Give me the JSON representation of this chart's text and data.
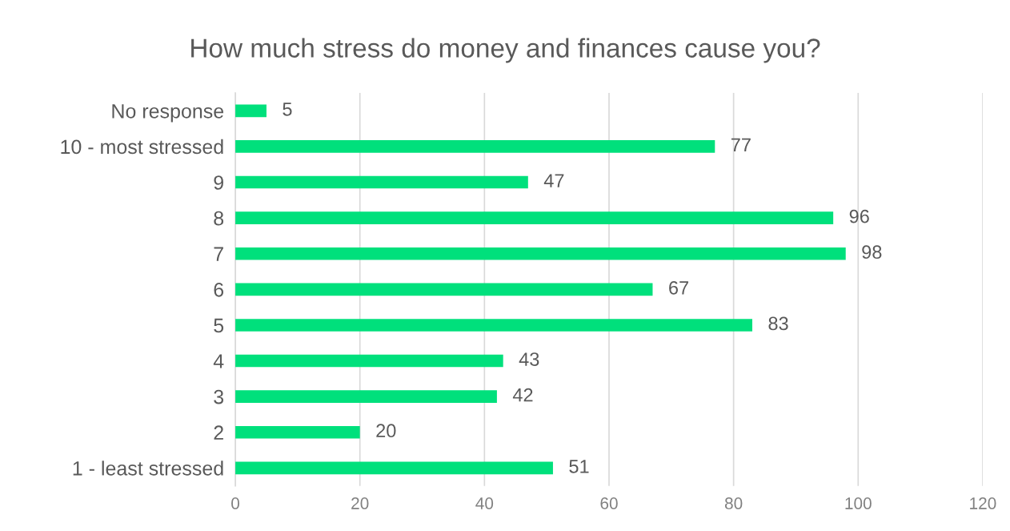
{
  "chart_data": {
    "type": "bar",
    "orientation": "horizontal",
    "title": "How much stress do money and finances cause you?",
    "categories": [
      "No response",
      "10 - most stressed",
      "9",
      "8",
      "7",
      "6",
      "5",
      "4",
      "3",
      "2",
      "1 - least stressed"
    ],
    "values": [
      5,
      77,
      47,
      96,
      98,
      67,
      83,
      43,
      42,
      20,
      51
    ],
    "color": "#00e07c",
    "xlim": [
      0,
      120
    ],
    "xticks": [
      0,
      20,
      40,
      60,
      80,
      100,
      120
    ],
    "grid": "x",
    "data_labels": true,
    "legend": false
  }
}
